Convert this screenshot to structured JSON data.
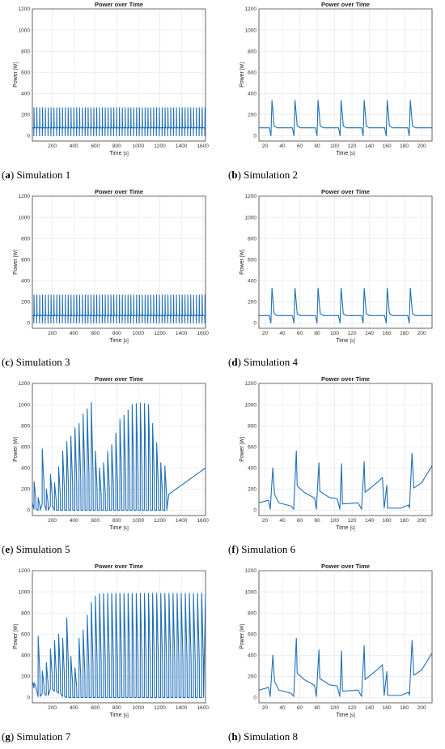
{
  "chart_data": [
    {
      "id": "a",
      "caption_tag": "(a)",
      "caption": "Simulation 1",
      "type": "line",
      "title": "Power over Time",
      "xlabel": "Time",
      "xunit": "[s]",
      "ylabel": "Power",
      "yunit": "[W]",
      "xlim": [
        15,
        1625
      ],
      "ylim": [
        -50,
        1200
      ],
      "xticks": [
        200,
        400,
        600,
        800,
        1000,
        1200,
        1400,
        1600
      ],
      "yticks": [
        0,
        200,
        400,
        600,
        800,
        1000,
        1200
      ],
      "grid": true,
      "pattern": {
        "kind": "periodic",
        "start": 30,
        "period": 26.5,
        "baseline": 75,
        "peak": 265,
        "dip": 0
      }
    },
    {
      "id": "b",
      "caption_tag": "(b)",
      "caption": "Simulation 2",
      "type": "line",
      "title": "Power over Time",
      "xlabel": "Time",
      "xunit": "[s]",
      "ylabel": "Power",
      "yunit": "[W]",
      "xlim": [
        13,
        212
      ],
      "ylim": [
        -50,
        1200
      ],
      "xticks": [
        20,
        40,
        60,
        80,
        100,
        120,
        140,
        160,
        180,
        200
      ],
      "yticks": [
        0,
        200,
        400,
        600,
        800,
        1000,
        1200
      ],
      "grid": true,
      "pattern": {
        "kind": "periodic",
        "start": 28,
        "period": 26.5,
        "baseline": 75,
        "peak": 335,
        "dip": 0
      }
    },
    {
      "id": "c",
      "caption_tag": "(c)",
      "caption": "Simulation 3",
      "type": "line",
      "title": "Power over Time",
      "xlabel": "Time",
      "xunit": "[s]",
      "ylabel": "Power",
      "yunit": "[W]",
      "xlim": [
        15,
        1625
      ],
      "ylim": [
        -50,
        1200
      ],
      "xticks": [
        200,
        400,
        600,
        800,
        1000,
        1200,
        1400,
        1600
      ],
      "yticks": [
        0,
        200,
        400,
        600,
        800,
        1000,
        1200
      ],
      "grid": true,
      "pattern": {
        "kind": "periodic",
        "start": 30,
        "period": 26.5,
        "baseline": 70,
        "peak": 265,
        "dip": 0
      }
    },
    {
      "id": "d",
      "caption_tag": "(d)",
      "caption": "Simulation 4",
      "type": "line",
      "title": "Power over Time",
      "xlabel": "Time",
      "xunit": "[s]",
      "ylabel": "Power",
      "yunit": "[W]",
      "xlim": [
        13,
        212
      ],
      "ylim": [
        -50,
        1200
      ],
      "xticks": [
        20,
        40,
        60,
        80,
        100,
        120,
        140,
        160,
        180,
        200
      ],
      "yticks": [
        0,
        200,
        400,
        600,
        800,
        1000,
        1200
      ],
      "grid": true,
      "pattern": {
        "kind": "periodic",
        "start": 28,
        "period": 26.5,
        "baseline": 70,
        "peak": 330,
        "dip": 0
      }
    },
    {
      "id": "e",
      "caption_tag": "(e)",
      "caption": "Simulation 5",
      "type": "line",
      "title": "Power over Time",
      "xlabel": "Time",
      "xunit": "[s]",
      "ylabel": "Power",
      "yunit": "[W]",
      "xlim": [
        15,
        1625
      ],
      "ylim": [
        -50,
        1200
      ],
      "xticks": [
        200,
        400,
        600,
        800,
        1000,
        1200,
        1400,
        1600
      ],
      "yticks": [
        0,
        200,
        400,
        600,
        800,
        1000,
        1200
      ],
      "grid": true,
      "pattern": {
        "kind": "pulses",
        "start": 30,
        "period": 38,
        "peaks": [
          270,
          120,
          580,
          200,
          340,
          260,
          410,
          560,
          650,
          700,
          780,
          820,
          910,
          960,
          1020,
          560,
          400,
          450,
          560,
          620,
          730,
          860,
          900,
          950,
          1000,
          1010,
          1015,
          1010,
          1000,
          820,
          640,
          450,
          420
        ],
        "lows": [
          10,
          0,
          60,
          0,
          40,
          0,
          0,
          0,
          0,
          0,
          0,
          0,
          0,
          0,
          0,
          0,
          0,
          0,
          0,
          0,
          0,
          0,
          0,
          0,
          0,
          0,
          0,
          0,
          0,
          0,
          0,
          0,
          0
        ],
        "tail": [
          380,
          400
        ]
      }
    },
    {
      "id": "f",
      "caption_tag": "(f)",
      "caption": "Simulation 6",
      "type": "line",
      "title": "Power over Time",
      "xlabel": "Time",
      "xunit": "[s]",
      "ylabel": "Power",
      "yunit": "[W]",
      "xlim": [
        13,
        212
      ],
      "ylim": [
        -50,
        1200
      ],
      "xticks": [
        20,
        40,
        60,
        80,
        100,
        120,
        140,
        160,
        180,
        200
      ],
      "yticks": [
        0,
        200,
        400,
        600,
        800,
        1000,
        1200
      ],
      "grid": true,
      "points": [
        [
          13,
          70
        ],
        [
          24,
          95
        ],
        [
          26,
          10
        ],
        [
          29,
          400
        ],
        [
          31,
          150
        ],
        [
          36,
          70
        ],
        [
          50,
          40
        ],
        [
          53,
          10
        ],
        [
          56,
          560
        ],
        [
          57,
          230
        ],
        [
          65,
          170
        ],
        [
          77,
          115
        ],
        [
          79,
          10
        ],
        [
          82,
          450
        ],
        [
          83,
          180
        ],
        [
          94,
          120
        ],
        [
          103,
          110
        ],
        [
          106,
          10
        ],
        [
          108,
          440
        ],
        [
          109,
          60
        ],
        [
          127,
          70
        ],
        [
          131,
          10
        ],
        [
          134,
          460
        ],
        [
          135,
          170
        ],
        [
          150,
          270
        ],
        [
          155,
          310
        ],
        [
          157,
          20
        ],
        [
          160,
          235
        ],
        [
          161,
          20
        ],
        [
          176,
          20
        ],
        [
          185,
          50
        ],
        [
          186,
          20
        ],
        [
          189,
          540
        ],
        [
          191,
          210
        ],
        [
          200,
          260
        ],
        [
          212,
          420
        ]
      ]
    },
    {
      "id": "g",
      "caption_tag": "(g)",
      "caption": "Simulation 7",
      "type": "line",
      "title": "Power over Time",
      "xlabel": "Time",
      "xunit": "[s]",
      "ylabel": "Power",
      "yunit": "[W]",
      "xlim": [
        15,
        1625
      ],
      "ylim": [
        -50,
        1200
      ],
      "xticks": [
        200,
        400,
        600,
        800,
        1000,
        1200,
        1400,
        1600
      ],
      "yticks": [
        0,
        200,
        400,
        600,
        800,
        1000,
        1200
      ],
      "grid": true,
      "pattern": {
        "kind": "pulses",
        "start": 30,
        "period": 38,
        "peaks": [
          140,
          580,
          250,
          330,
          460,
          540,
          600,
          560,
          750,
          390,
          280,
          560,
          640,
          780,
          900,
          960,
          980,
          985,
          985,
          985,
          985,
          985,
          985,
          985,
          985,
          985,
          985,
          985,
          985,
          985,
          985,
          985,
          985,
          985,
          985,
          985,
          985,
          985,
          985,
          985,
          985,
          985
        ],
        "lows": [
          90,
          10,
          40,
          20,
          80,
          60,
          40,
          10,
          0,
          0,
          0,
          0,
          0,
          0,
          0,
          0,
          0,
          0,
          0,
          0,
          0,
          0,
          0,
          0,
          0,
          0,
          0,
          0,
          0,
          0,
          0,
          0,
          0,
          0,
          0,
          0,
          0,
          0,
          0,
          0,
          0,
          0
        ],
        "tail": [
          540,
          980
        ]
      }
    },
    {
      "id": "h",
      "caption_tag": "(h)",
      "caption": "Simulation 8",
      "type": "line",
      "title": "Power over Time",
      "xlabel": "Time",
      "xunit": "[s]",
      "ylabel": "Power",
      "yunit": "[W]",
      "xlim": [
        13,
        212
      ],
      "ylim": [
        -50,
        1200
      ],
      "xticks": [
        20,
        40,
        60,
        80,
        100,
        120,
        140,
        160,
        180,
        200
      ],
      "yticks": [
        0,
        200,
        400,
        600,
        800,
        1000,
        1200
      ],
      "grid": true,
      "points": [
        [
          13,
          70
        ],
        [
          24,
          95
        ],
        [
          26,
          10
        ],
        [
          29,
          400
        ],
        [
          31,
          150
        ],
        [
          36,
          70
        ],
        [
          50,
          40
        ],
        [
          53,
          10
        ],
        [
          56,
          560
        ],
        [
          57,
          230
        ],
        [
          65,
          170
        ],
        [
          77,
          115
        ],
        [
          79,
          10
        ],
        [
          82,
          450
        ],
        [
          83,
          180
        ],
        [
          94,
          120
        ],
        [
          103,
          110
        ],
        [
          106,
          10
        ],
        [
          108,
          440
        ],
        [
          109,
          60
        ],
        [
          127,
          70
        ],
        [
          131,
          10
        ],
        [
          134,
          490
        ],
        [
          135,
          170
        ],
        [
          150,
          270
        ],
        [
          155,
          310
        ],
        [
          157,
          20
        ],
        [
          160,
          245
        ],
        [
          161,
          20
        ],
        [
          176,
          20
        ],
        [
          185,
          50
        ],
        [
          186,
          20
        ],
        [
          189,
          540
        ],
        [
          191,
          210
        ],
        [
          200,
          260
        ],
        [
          212,
          420
        ]
      ]
    }
  ]
}
